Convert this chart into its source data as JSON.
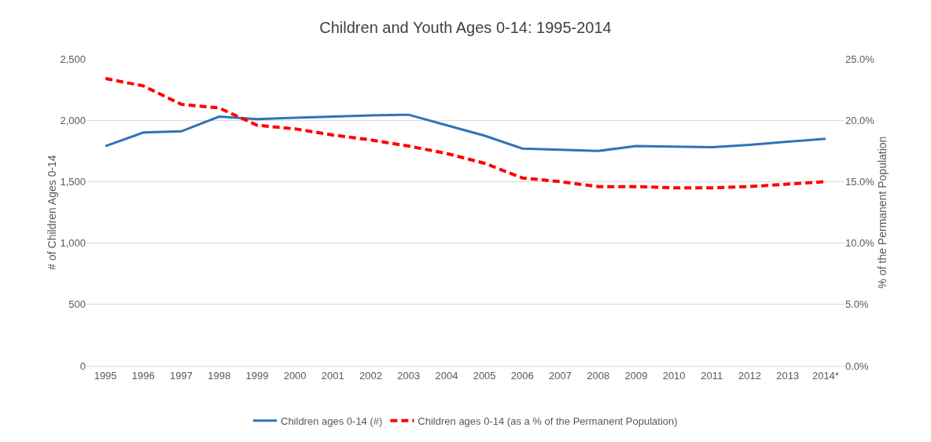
{
  "chart_data": {
    "type": "line",
    "title": "Children and Youth Ages 0-14: 1995-2014",
    "ylabel": "# of Children Ages 0-14",
    "y2label": "% of the Permanent Population",
    "categories": [
      "1995",
      "1996",
      "1997",
      "1998",
      "1999",
      "2000",
      "2001",
      "2002",
      "2003",
      "2004",
      "2005",
      "2006",
      "2007",
      "2008",
      "2009",
      "2010",
      "2011",
      "2012",
      "2013",
      "2014*"
    ],
    "series": [
      {
        "name": "Children ages 0-14 (#)",
        "color": "#2e75b6",
        "line_style": "solid",
        "values": [
          1790,
          1900,
          1910,
          2030,
          2010,
          2020,
          2030,
          2040,
          2045,
          1960,
          1875,
          1770,
          1760,
          1750,
          1790,
          1785,
          1780,
          1800,
          1825,
          1850
        ]
      },
      {
        "name": "Children ages 0-14 (as a % of the Permanent Population)",
        "color": "#ff0000",
        "line_style": "dashed",
        "axis": "y2",
        "values": [
          23.4,
          22.8,
          21.3,
          21.0,
          19.6,
          19.3,
          18.8,
          18.4,
          17.9,
          17.3,
          16.5,
          15.3,
          15.0,
          14.6,
          14.6,
          14.5,
          14.5,
          14.6,
          14.8,
          15.0
        ]
      }
    ],
    "ylim": [
      0,
      2500
    ],
    "yticks": [
      {
        "value": 0,
        "label": "0"
      },
      {
        "value": 500,
        "label": "500"
      },
      {
        "value": 1000,
        "label": "1,000"
      },
      {
        "value": 1500,
        "label": "1,500"
      },
      {
        "value": 2000,
        "label": "2,000"
      },
      {
        "value": 2500,
        "label": "2,500"
      }
    ],
    "y2lim": [
      0,
      25
    ],
    "y2ticks": [
      {
        "value": 0,
        "label": "0.0%"
      },
      {
        "value": 5,
        "label": "5.0%"
      },
      {
        "value": 10,
        "label": "10.0%"
      },
      {
        "value": 15,
        "label": "15.0%"
      },
      {
        "value": 20,
        "label": "20.0%"
      },
      {
        "value": 25,
        "label": "25.0%"
      }
    ],
    "grid": "y",
    "legend": "bottom",
    "marker": "none"
  }
}
